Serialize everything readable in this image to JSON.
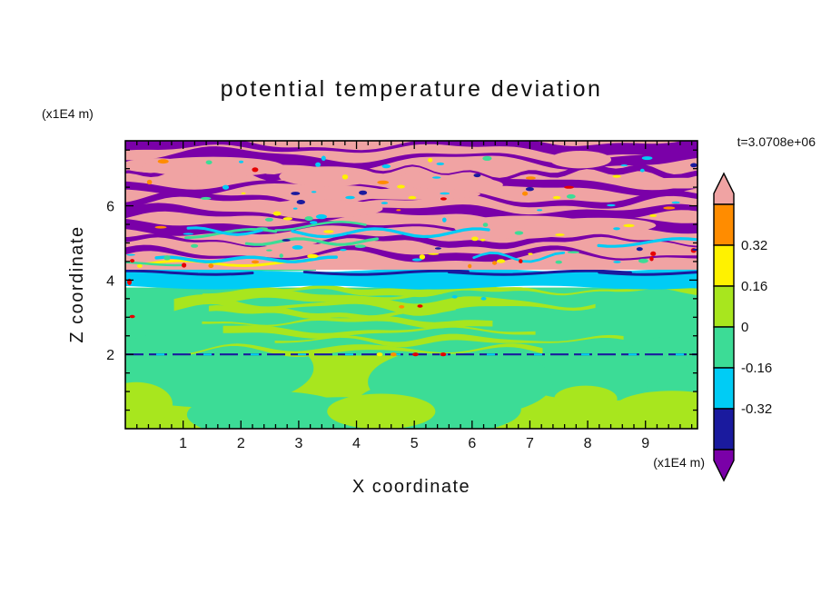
{
  "chart_data": {
    "type": "heatmap",
    "title": "potential temperature deviation",
    "xlabel": "X coordinate",
    "ylabel": "Z coordinate",
    "x_units": "(x1E4 m)",
    "y_units": "(x1E4 m)",
    "time_label": "t=3.0708e+06",
    "xlim": [
      0,
      9.9
    ],
    "ylim": [
      0,
      7.75
    ],
    "x_ticks": [
      1,
      2,
      3,
      4,
      5,
      6,
      7,
      8,
      9
    ],
    "y_ticks": [
      2,
      4,
      6
    ],
    "x_minor_step": 0.2,
    "y_minor_step": 0.5,
    "contour_interval": 0.16,
    "levels": [
      -0.48,
      -0.32,
      -0.16,
      0,
      0.16,
      0.32,
      0.48
    ],
    "colors": {
      "pink": "#F0A3A3",
      "orange": "#FF8C00",
      "yellow": "#FFF200",
      "yellow_green": "#A8E61E",
      "green": "#3CDC96",
      "cyan": "#00CCF5",
      "navy": "#1A1A9E",
      "purple": "#7A00A8",
      "red": "#E60000"
    },
    "regions": [
      {
        "name": "wave-layer",
        "z_range": [
          4.3,
          7.75
        ],
        "values": "alternating positive (pink, >0.32) and negative (purple, <-0.32) wavy horizontal bands with small green/cyan/yellow/orange/red speckles at band edges"
      },
      {
        "name": "inversion-band",
        "z_range": [
          3.8,
          4.3
        ],
        "values": "-0.32 to -0.16 (cyan) with thin dark-blue streaks"
      },
      {
        "name": "mixed-layer",
        "z_range": [
          0,
          3.8
        ],
        "values": "-0.16 to 0.16 (green / yellow-green turbulent mottling)"
      },
      {
        "name": "shear-line",
        "z_range": [
          1.95,
          2.05
        ],
        "values": "thin dark-blue line across full domain at z = 2"
      }
    ]
  },
  "colorbar": {
    "labels": [
      "0.32",
      "0.16",
      "0",
      "-0.16",
      "-0.32"
    ],
    "segments": [
      {
        "color_key": "pink",
        "shape": "arrow-up"
      },
      {
        "color_key": "orange",
        "shape": "box"
      },
      {
        "color_key": "yellow",
        "shape": "box"
      },
      {
        "color_key": "yellow_green",
        "shape": "box"
      },
      {
        "color_key": "green",
        "shape": "box"
      },
      {
        "color_key": "cyan",
        "shape": "box"
      },
      {
        "color_key": "navy",
        "shape": "box"
      },
      {
        "color_key": "purple",
        "shape": "arrow-down"
      }
    ]
  }
}
